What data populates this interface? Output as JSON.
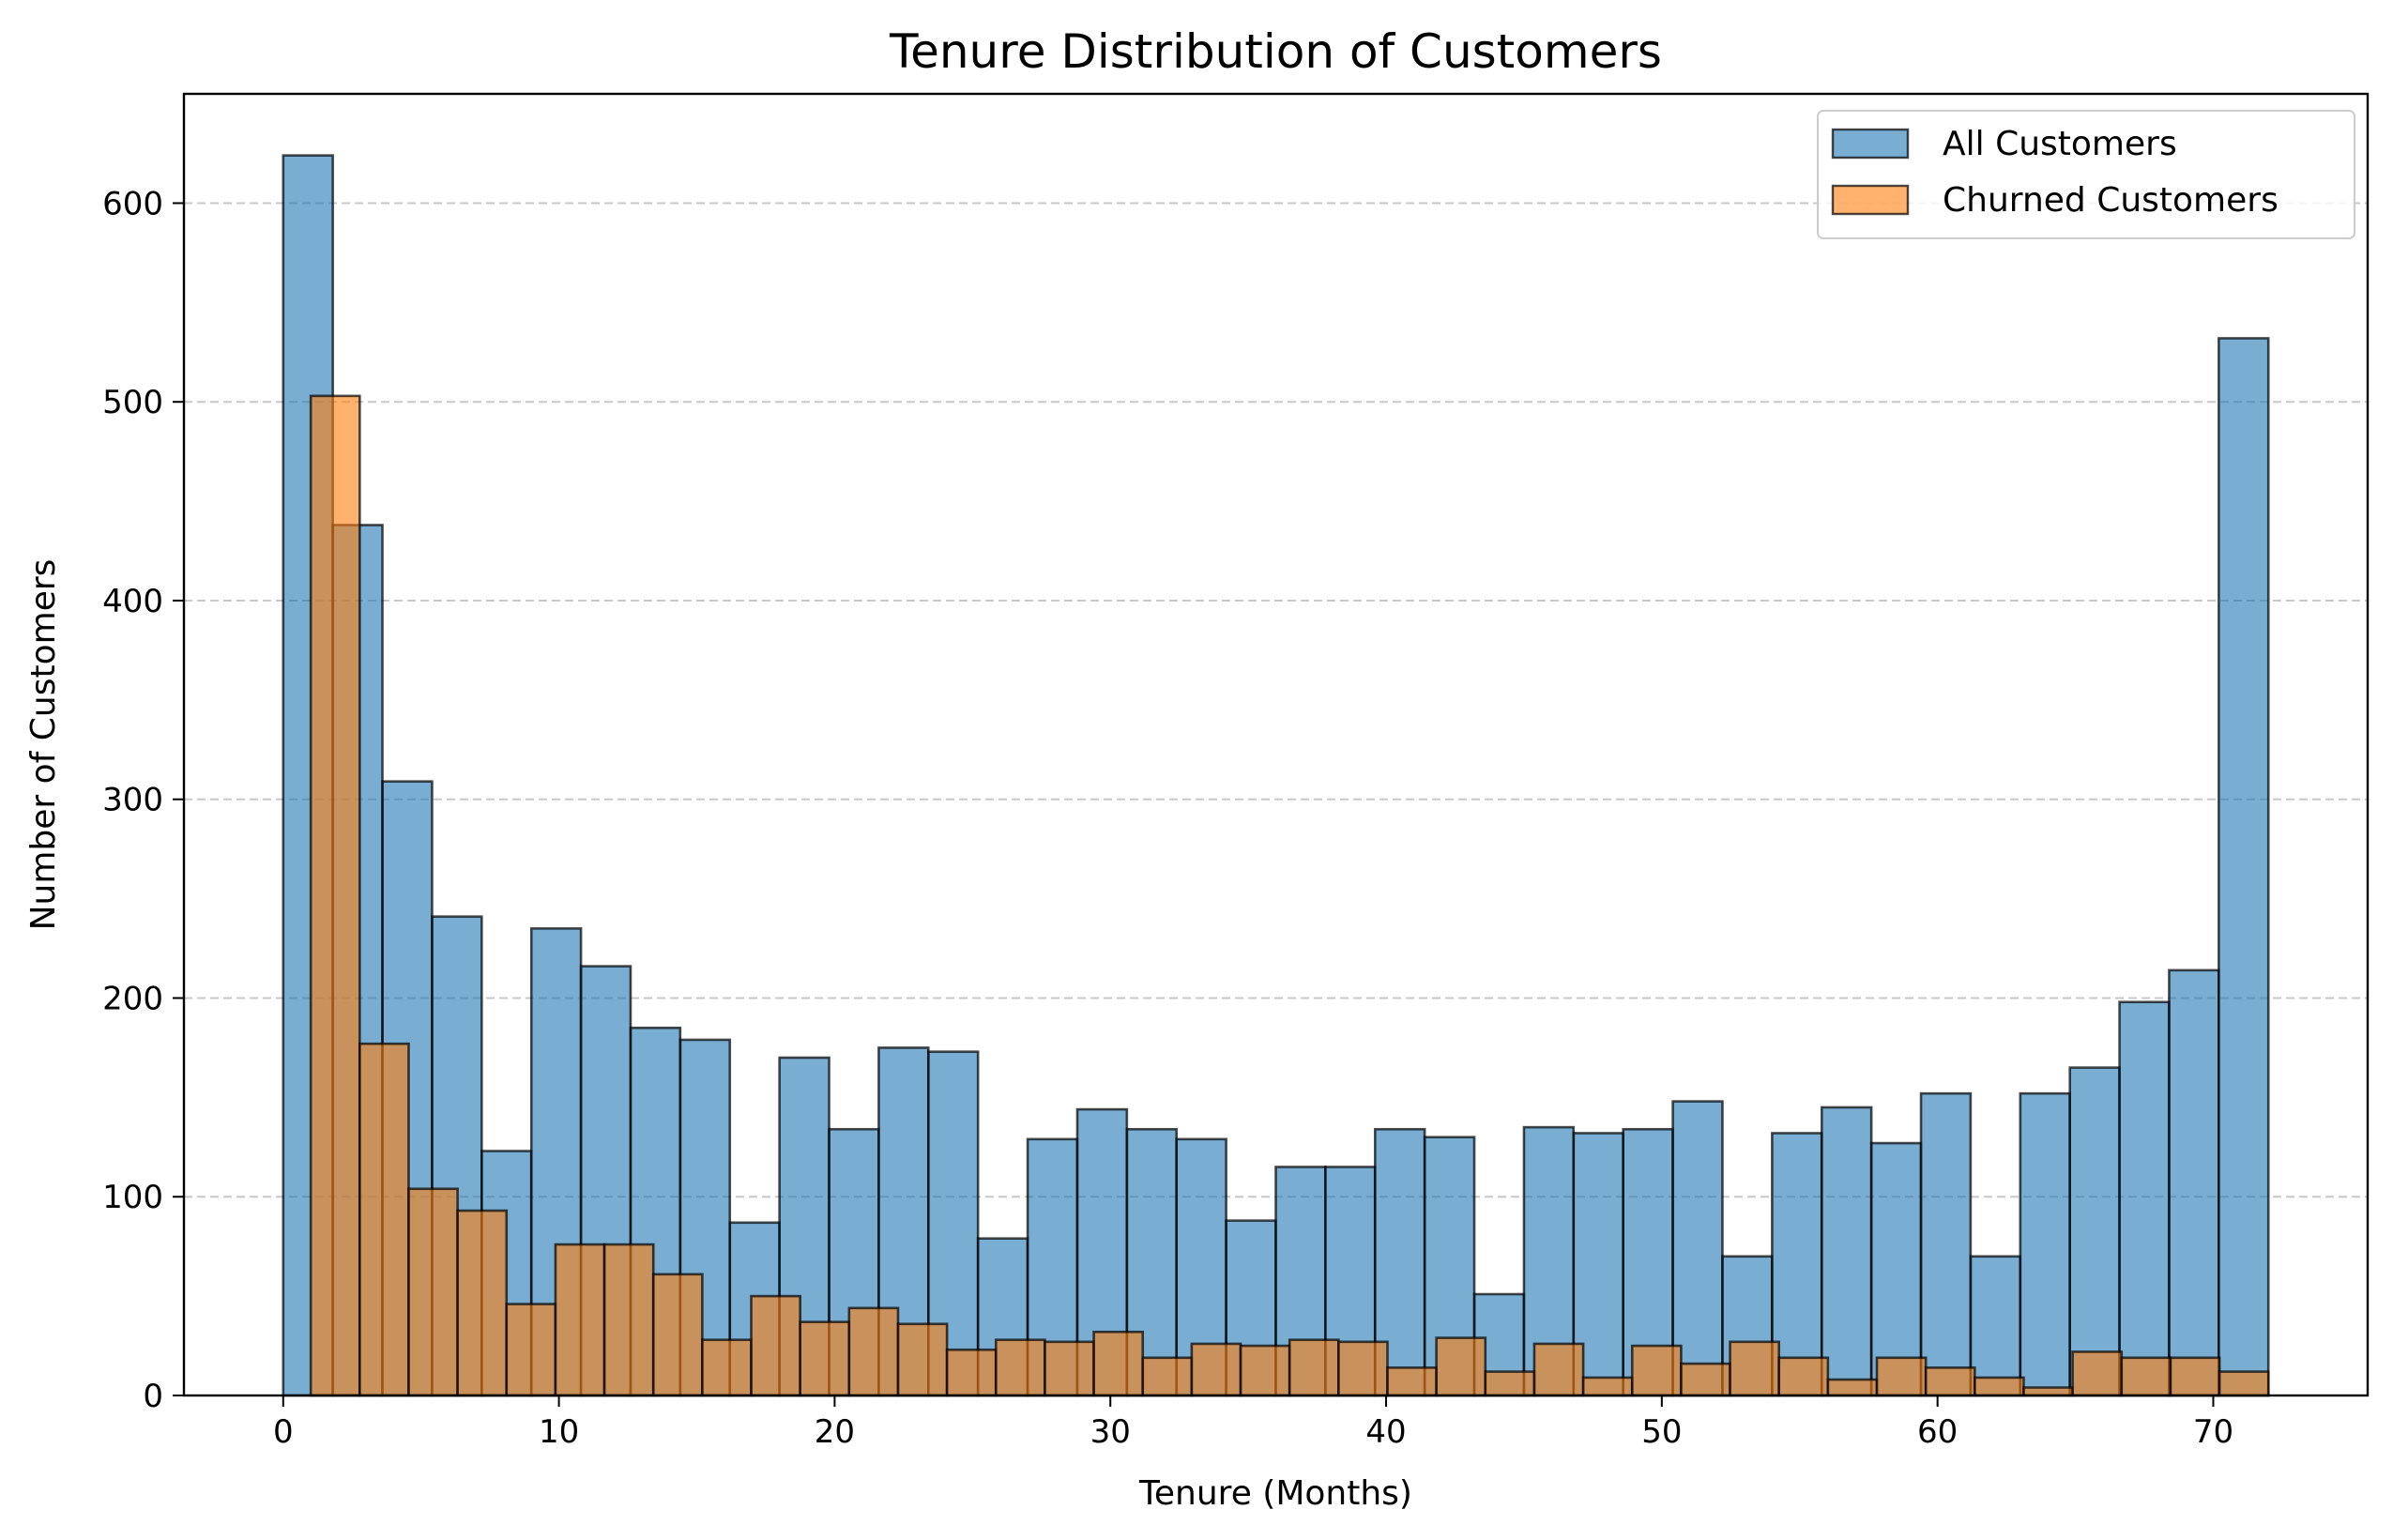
{
  "chart_data": {
    "type": "bar",
    "title": "Tenure Distribution of Customers",
    "xlabel": "Tenure (Months)",
    "ylabel": "Number of Customers",
    "xlim": [
      -3.6,
      75.6
    ],
    "ylim": [
      0,
      655
    ],
    "xticks": [
      0,
      10,
      20,
      30,
      40,
      50,
      60,
      70
    ],
    "yticks": [
      0,
      100,
      200,
      300,
      400,
      500,
      600
    ],
    "grid": "y-dashed",
    "legend_position": "top-right",
    "series": [
      {
        "name": "All Customers",
        "color": "#1f77b4",
        "bin_start": 0,
        "bin_width": 1.8,
        "values": [
          624,
          438,
          309,
          241,
          123,
          235,
          216,
          185,
          179,
          87,
          170,
          134,
          175,
          173,
          79,
          129,
          144,
          134,
          129,
          88,
          115,
          115,
          134,
          130,
          51,
          135,
          132,
          134,
          148,
          70,
          132,
          145,
          127,
          152,
          70,
          152,
          165,
          198,
          214,
          532
        ]
      },
      {
        "name": "Churned Customers",
        "color": "#ff7f0e",
        "bin_start": 1,
        "bin_width": 1.775,
        "values": [
          503,
          177,
          104,
          93,
          46,
          76,
          76,
          61,
          28,
          50,
          37,
          44,
          36,
          23,
          28,
          27,
          32,
          19,
          26,
          25,
          28,
          27,
          14,
          29,
          12,
          26,
          9,
          25,
          16,
          27,
          19,
          8,
          19,
          14,
          9,
          4,
          22,
          19,
          19,
          12
        ]
      }
    ]
  }
}
